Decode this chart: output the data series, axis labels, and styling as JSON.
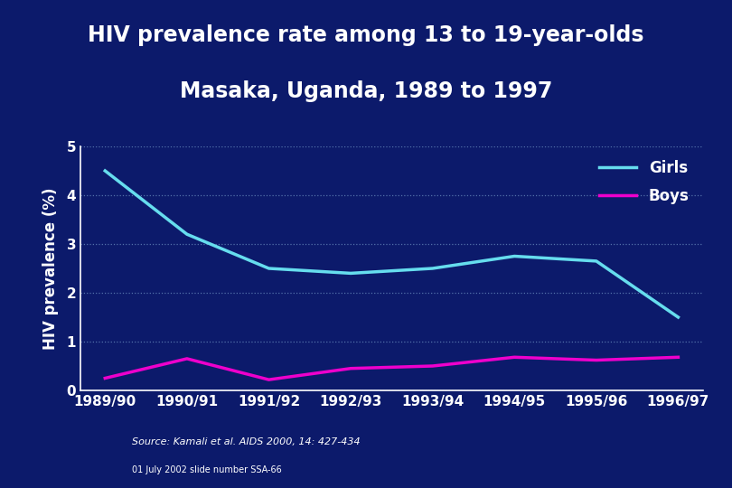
{
  "title_line1": "HIV prevalence rate among 13 to 19-year-olds",
  "title_line2": "Masaka, Uganda, 1989 to 1997",
  "ylabel": "HIV prevalence (%)",
  "x_labels": [
    "1989/90",
    "1990/91",
    "1991/92",
    "1992/93",
    "1993/94",
    "1994/95",
    "1995/96",
    "1996/97"
  ],
  "girls_data": [
    4.5,
    3.2,
    2.5,
    2.4,
    2.5,
    2.75,
    2.65,
    1.5
  ],
  "boys_data": [
    0.25,
    0.65,
    0.22,
    0.45,
    0.5,
    0.68,
    0.62,
    0.68
  ],
  "girls_color": "#66DDEE",
  "boys_color": "#EE00CC",
  "background_color": "#0C1A6B",
  "text_color": "#FFFFFF",
  "grid_color": "#6688BB",
  "ylim": [
    0,
    5
  ],
  "yticks": [
    0,
    1,
    2,
    3,
    4,
    5
  ],
  "title_fontsize": 17,
  "axis_label_fontsize": 12,
  "tick_fontsize": 11,
  "legend_fontsize": 12,
  "line_width": 2.5,
  "source_text": "Source: Kamali et al. AIDS 2000, 14: 427-434",
  "slide_text": "01 July 2002 slide number SSA-66",
  "gold_color": "#C8A832"
}
